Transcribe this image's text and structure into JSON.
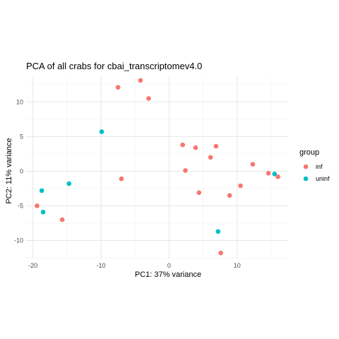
{
  "chart_data": {
    "type": "scatter",
    "title": "PCA of all crabs for cbai_transcriptomev4.0",
    "xlabel": "PC1: 37% variance",
    "ylabel": "PC2: 11% variance",
    "xlim": [
      -21,
      17.5
    ],
    "ylim": [
      -12.7,
      13.7
    ],
    "x_ticks": [
      -20,
      -10,
      0,
      10
    ],
    "y_ticks": [
      -10,
      -5,
      0,
      5,
      10
    ],
    "grid": true,
    "legend": {
      "title": "group",
      "placement": "right"
    },
    "series": [
      {
        "name": "inf",
        "color": "#F8766D",
        "points": [
          [
            -7.5,
            12.1
          ],
          [
            -4.2,
            13.1
          ],
          [
            -3.0,
            10.5
          ],
          [
            2.0,
            3.8
          ],
          [
            3.9,
            3.4
          ],
          [
            6.9,
            3.6
          ],
          [
            6.1,
            2.0
          ],
          [
            2.4,
            0.1
          ],
          [
            4.4,
            -3.1
          ],
          [
            8.9,
            -3.5
          ],
          [
            10.5,
            -2.1
          ],
          [
            12.3,
            1.0
          ],
          [
            14.6,
            -0.3
          ],
          [
            16.0,
            -0.8
          ],
          [
            -7.0,
            -1.1
          ],
          [
            -19.4,
            -5.0
          ],
          [
            -15.7,
            -7.0
          ],
          [
            7.6,
            -11.8
          ]
        ]
      },
      {
        "name": "uninf",
        "color": "#00BFC4",
        "points": [
          [
            -9.9,
            5.7
          ],
          [
            -14.7,
            -1.8
          ],
          [
            -18.7,
            -2.8
          ],
          [
            -18.5,
            -5.9
          ],
          [
            15.5,
            -0.4
          ],
          [
            7.2,
            -8.7
          ]
        ]
      }
    ]
  }
}
